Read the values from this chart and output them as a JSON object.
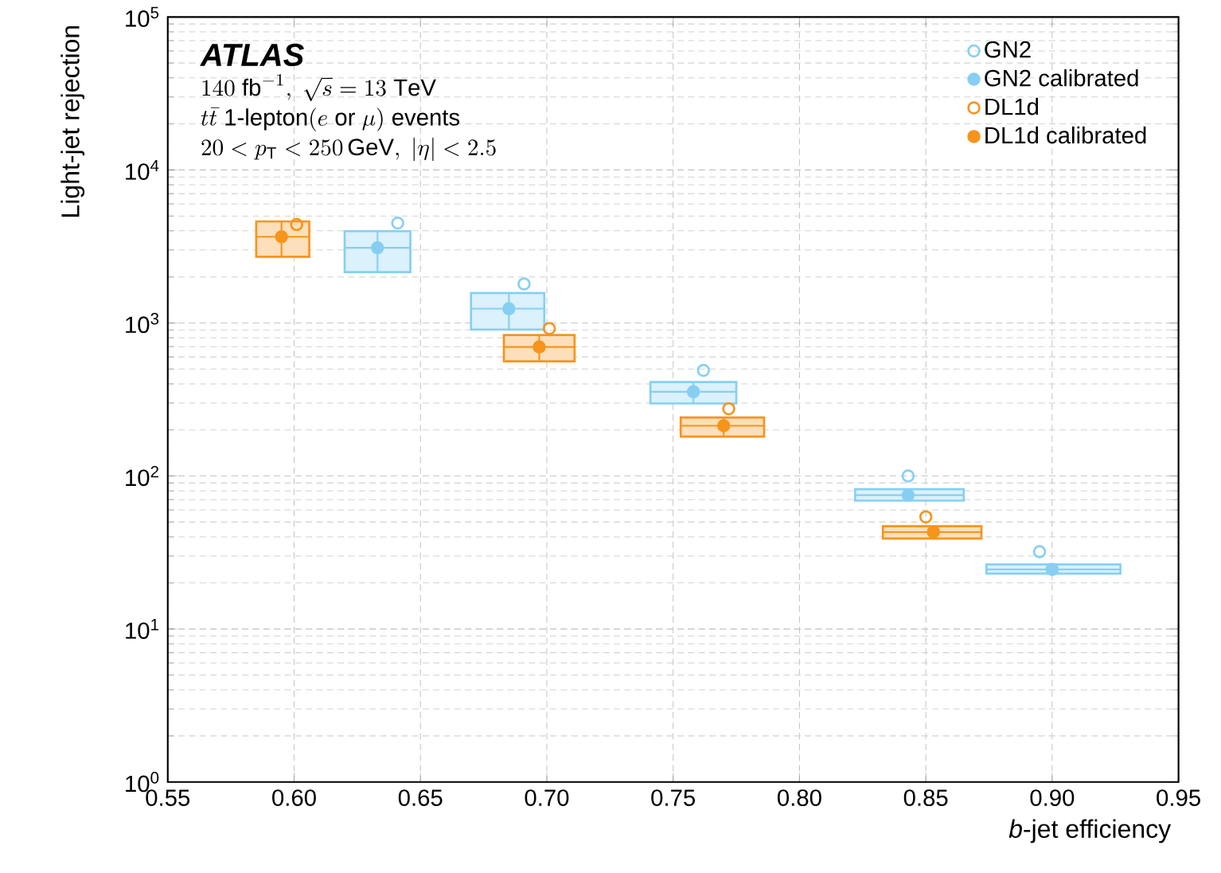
{
  "chart_data": {
    "type": "scatter",
    "xlabel": "*b*-jet efficiency",
    "ylabel": "Light-jet rejection",
    "annotations": [
      "ATLAS",
      "140~\\mathrm{fb}^{-1},\\ \\sqrt{s}=13~\\mathrm{TeV}",
      "t\\bar{t}\\ \\mathrm{1\\text{-}lepton}(e\\ \\mathrm{or}\\ \\mu)\\ \\mathrm{events}",
      "20<p_{\\mathrm{T}}<250\\,\\mathrm{GeV},\\ |\\eta|<2.5"
    ],
    "log": "y",
    "grid": true,
    "legend": "top right",
    "marker": "circle",
    "xlim": [
      0.55,
      0.95
    ],
    "ylim": [
      1,
      100000
    ],
    "xticks": [
      {
        "value": 0.55,
        "label": "0.55"
      },
      {
        "value": 0.6,
        "label": "0.60"
      },
      {
        "value": 0.65,
        "label": "0.65"
      },
      {
        "value": 0.7,
        "label": "0.70"
      },
      {
        "value": 0.75,
        "label": "0.75"
      },
      {
        "value": 0.8,
        "label": "0.80"
      },
      {
        "value": 0.85,
        "label": "0.85"
      },
      {
        "value": 0.9,
        "label": "0.90"
      },
      {
        "value": 0.95,
        "label": "0.95"
      }
    ],
    "yticks": [
      {
        "value": 1,
        "label": "10$^{0}$"
      },
      {
        "value": 10,
        "label": "10$^{1}$"
      },
      {
        "value": 100,
        "label": "10$^{2}$"
      },
      {
        "value": 1000,
        "label": "10$^{3}$"
      },
      {
        "value": 10000,
        "label": "10$^{4}$"
      },
      {
        "value": 100000,
        "label": "10$^{5}$"
      }
    ],
    "series": [
      {
        "name": "GN2",
        "color": "#86cff3",
        "x": [
          0.641,
          0.691,
          0.762,
          0.843,
          0.895
        ],
        "values": [
          4500,
          1800,
          490,
          100,
          32
        ]
      },
      {
        "name": "GN2 calibrated",
        "color": "#86cff3",
        "x": [
          0.633,
          0.685,
          0.758,
          0.843,
          0.9
        ],
        "values": [
          3100,
          1240,
          355,
          75,
          24.5
        ],
        "errors": [
          [
            2150,
            3980
          ],
          [
            906,
            1570
          ],
          [
            298,
            411
          ],
          [
            69,
            82
          ],
          [
            23,
            26.4
          ]
        ],
        "xerrors": [
          [
            0.62,
            0.646
          ],
          [
            0.67,
            0.699
          ],
          [
            0.741,
            0.775
          ],
          [
            0.822,
            0.865
          ],
          [
            0.874,
            0.927
          ]
        ]
      },
      {
        "name": "DL1d",
        "color": "#f7941d",
        "x": [
          0.601,
          0.701,
          0.772,
          0.85
        ],
        "values": [
          4400,
          920,
          275,
          54
        ]
      },
      {
        "name": "DL1d calibrated",
        "color": "#f7941d",
        "x": [
          0.595,
          0.697,
          0.77,
          0.853
        ],
        "values": [
          3660,
          697,
          213,
          43
        ],
        "errors": [
          [
            2710,
            4610
          ],
          [
            562,
            834
          ],
          [
            181,
            241
          ],
          [
            39,
            47
          ]
        ],
        "xerrors": [
          [
            0.585,
            0.606
          ],
          [
            0.683,
            0.711
          ],
          [
            0.753,
            0.786
          ],
          [
            0.833,
            0.872
          ]
        ]
      }
    ]
  }
}
